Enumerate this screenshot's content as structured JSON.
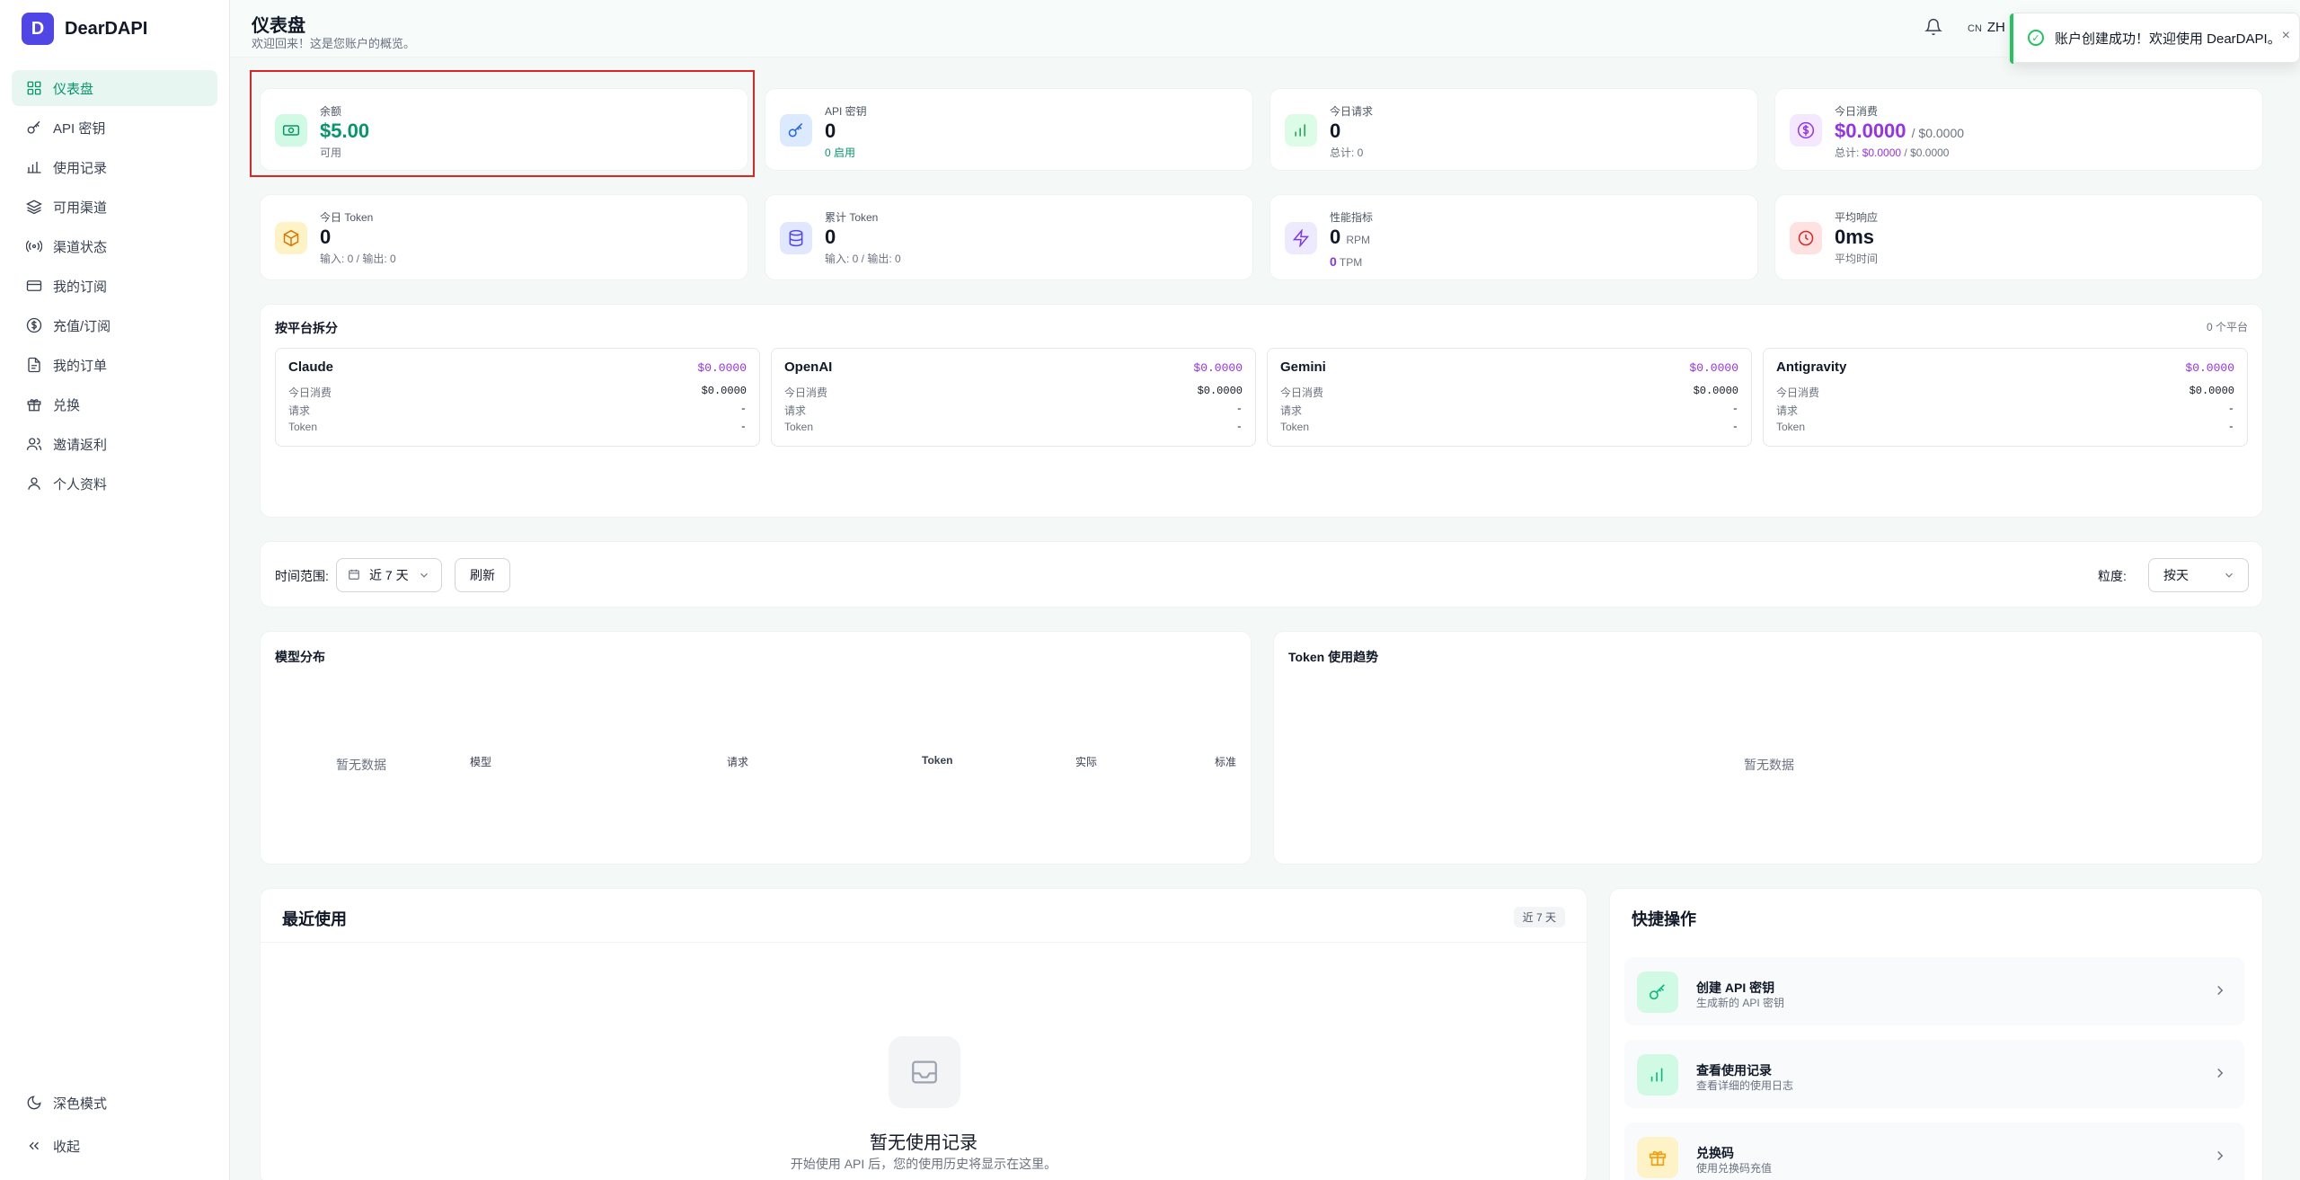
{
  "brand": {
    "logo_letter": "D",
    "name": "DearDAPI"
  },
  "nav": [
    {
      "label": "仪表盘",
      "icon": "grid-icon",
      "active": true
    },
    {
      "label": "API 密钥",
      "icon": "key-icon"
    },
    {
      "label": "使用记录",
      "icon": "bar-chart-icon"
    },
    {
      "label": "可用渠道",
      "icon": "layers-icon"
    },
    {
      "label": "渠道状态",
      "icon": "signal-icon"
    },
    {
      "label": "我的订阅",
      "icon": "card-icon"
    },
    {
      "label": "充值/订阅",
      "icon": "dollar-circle-icon"
    },
    {
      "label": "我的订单",
      "icon": "document-icon"
    },
    {
      "label": "兑换",
      "icon": "gift-icon"
    },
    {
      "label": "邀请返利",
      "icon": "users-icon"
    },
    {
      "label": "个人资料",
      "icon": "user-icon"
    }
  ],
  "sidebar_bottom": {
    "dark_mode": "深色模式",
    "collapse": "收起"
  },
  "header": {
    "title": "仪表盘",
    "subtitle": "欢迎回来！这是您账户的概览。",
    "lang_prefix": "CN",
    "lang": "ZH"
  },
  "toast": {
    "message": "账户创建成功！欢迎使用 DearDAPI。",
    "close": "×"
  },
  "stats": {
    "balance": {
      "label": "余额",
      "value": "$5.00",
      "sub": "可用"
    },
    "api_keys": {
      "label": "API 密钥",
      "value": "0",
      "sub": "0 启用"
    },
    "today_requests": {
      "label": "今日请求",
      "value": "0",
      "sub": "总计: 0"
    },
    "today_cost": {
      "label": "今日消费",
      "value": "$0.0000",
      "value_suffix": "/ $0.0000",
      "sub_prefix": "总计:",
      "sub_a": "$0.0000",
      "sub_b": "/ $0.0000"
    },
    "today_tokens": {
      "label": "今日 Token",
      "value": "0",
      "sub": "输入: 0 / 输出: 0"
    },
    "total_tokens": {
      "label": "累计 Token",
      "value": "0",
      "sub": "输入: 0 / 输出: 0"
    },
    "performance": {
      "label": "性能指标",
      "rpm_value": "0",
      "rpm_unit": "RPM",
      "tpm_value": "0",
      "tpm_unit": "TPM"
    },
    "avg_response": {
      "label": "平均响应",
      "value": "0ms",
      "sub": "平均时间"
    }
  },
  "platforms": {
    "title": "按平台拆分",
    "count": "0 个平台",
    "items": [
      {
        "name": "Claude",
        "cost": "$0.0000",
        "today_label": "今日消费",
        "today_value": "$0.0000",
        "req_label": "请求",
        "req_value": "-",
        "token_label": "Token",
        "token_value": "-"
      },
      {
        "name": "OpenAI",
        "cost": "$0.0000",
        "today_label": "今日消费",
        "today_value": "$0.0000",
        "req_label": "请求",
        "req_value": "-",
        "token_label": "Token",
        "token_value": "-"
      },
      {
        "name": "Gemini",
        "cost": "$0.0000",
        "today_label": "今日消费",
        "today_value": "$0.0000",
        "req_label": "请求",
        "req_value": "-",
        "token_label": "Token",
        "token_value": "-"
      },
      {
        "name": "Antigravity",
        "cost": "$0.0000",
        "today_label": "今日消费",
        "today_value": "$0.0000",
        "req_label": "请求",
        "req_value": "-",
        "token_label": "Token",
        "token_value": "-"
      }
    ]
  },
  "filters": {
    "range_label": "时间范围:",
    "range_value": "近 7 天",
    "refresh": "刷新",
    "granularity_label": "粒度:",
    "granularity_value": "按天"
  },
  "model_dist": {
    "title": "模型分布",
    "empty": "暂无数据",
    "columns": [
      "模型",
      "请求",
      "Token",
      "实际",
      "标准"
    ]
  },
  "token_trend": {
    "title": "Token 使用趋势",
    "empty": "暂无数据"
  },
  "recent": {
    "title": "最近使用",
    "badge": "近 7 天",
    "empty_title": "暂无使用记录",
    "empty_desc": "开始使用 API 后，您的使用历史将显示在这里。"
  },
  "quick": {
    "title": "快捷操作",
    "items": [
      {
        "title": "创建 API 密钥",
        "desc": "生成新的 API 密钥",
        "icon": "key-icon",
        "color": "#10b981",
        "bg": "#d1fae5"
      },
      {
        "title": "查看使用记录",
        "desc": "查看详细的使用日志",
        "icon": "bar-chart-icon",
        "color": "#10b981",
        "bg": "#d1fae5"
      },
      {
        "title": "兑换码",
        "desc": "使用兑换码充值",
        "icon": "gift-icon",
        "color": "#f59e0b",
        "bg": "#fef3c7"
      }
    ]
  },
  "colors": {
    "accent": "#059669",
    "purple": "#9333ea",
    "brand": "#4f46e5",
    "highlight": "#dc2626"
  }
}
